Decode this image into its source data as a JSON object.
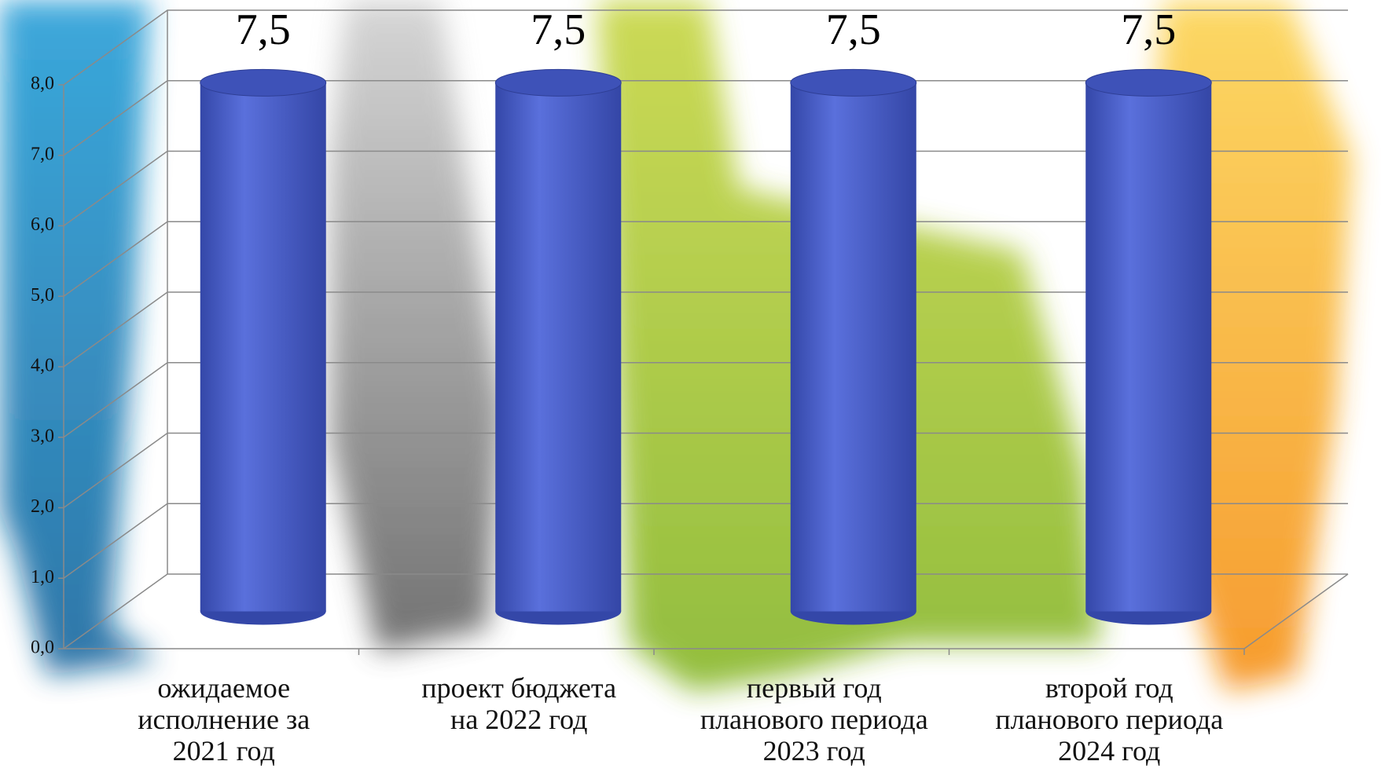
{
  "chart_data": {
    "type": "bar3d",
    "categories": [
      "ожидаемое\nисполнение за\n2021 год",
      "проект бюджета\nна 2022 год",
      "первый год\nпланового периода\n2023 год",
      "второй год\nпланового периода\n2024 год"
    ],
    "values": [
      7.5,
      7.5,
      7.5,
      7.5
    ],
    "value_labels": [
      "7,5",
      "7,5",
      "7,5",
      "7,5"
    ],
    "color": "#4f63cf",
    "ylim": [
      0,
      8
    ],
    "yticks": [
      {
        "value": 0,
        "label": "0,0"
      },
      {
        "value": 1,
        "label": "1,0"
      },
      {
        "value": 2,
        "label": "2,0"
      },
      {
        "value": 3,
        "label": "3,0"
      },
      {
        "value": 4,
        "label": "4,0"
      },
      {
        "value": 5,
        "label": "5,0"
      },
      {
        "value": 6,
        "label": "6,0"
      },
      {
        "value": 7,
        "label": "7,0"
      },
      {
        "value": 8,
        "label": "8,0"
      }
    ],
    "grid": true
  }
}
